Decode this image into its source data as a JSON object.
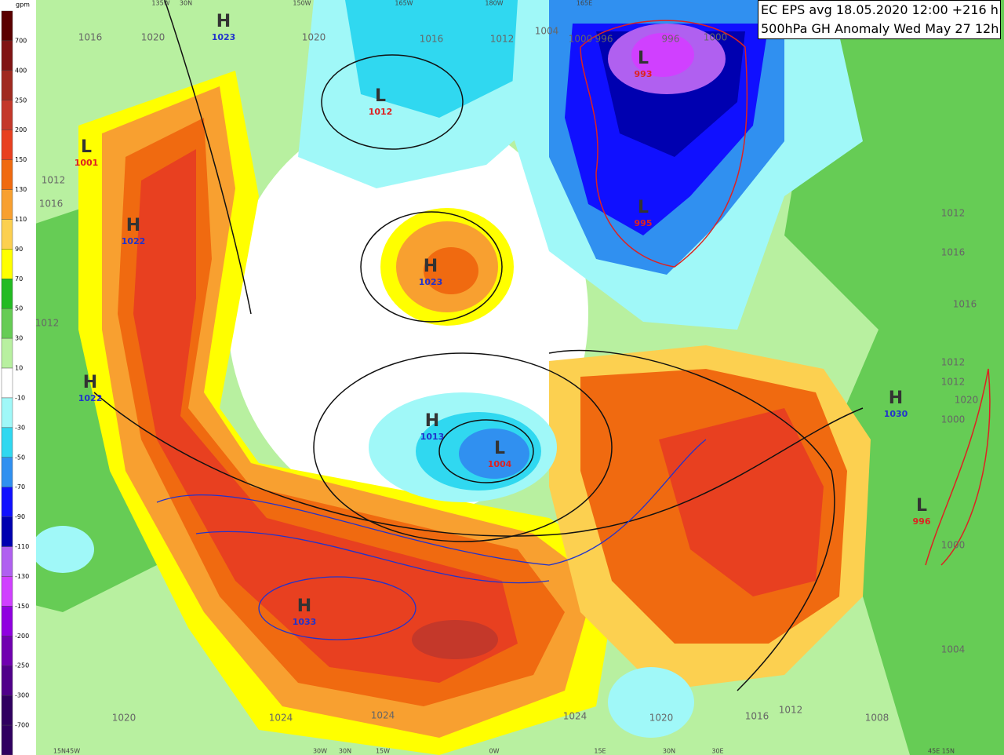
{
  "title": [
    "EC EPS avg 18.05.2020 12:00 +216 h",
    "500hPa GH Anomaly Wed May 27 12h"
  ],
  "legend": {
    "unit": "gpm",
    "items": [
      {
        "value": 700,
        "color": "#5a0000"
      },
      {
        "value": 400,
        "color": "#801414"
      },
      {
        "value": 250,
        "color": "#a02a20"
      },
      {
        "value": 200,
        "color": "#c4382a"
      },
      {
        "value": 150,
        "color": "#e84020"
      },
      {
        "value": 130,
        "color": "#f06a10"
      },
      {
        "value": 110,
        "color": "#f8a030"
      },
      {
        "value": 90,
        "color": "#fcd050"
      },
      {
        "value": 70,
        "color": "#ffff00"
      },
      {
        "value": 50,
        "color": "#22bb22"
      },
      {
        "value": 30,
        "color": "#66cc55"
      },
      {
        "value": 10,
        "color": "#b8f0a0"
      },
      {
        "value": -10,
        "color": "#ffffff"
      },
      {
        "value": -30,
        "color": "#a0f8f8"
      },
      {
        "value": -50,
        "color": "#30d8f0"
      },
      {
        "value": -70,
        "color": "#3090f0"
      },
      {
        "value": -90,
        "color": "#1010ff"
      },
      {
        "value": -110,
        "color": "#0000b0"
      },
      {
        "value": -130,
        "color": "#b060f0"
      },
      {
        "value": -150,
        "color": "#d040ff"
      },
      {
        "value": -200,
        "color": "#9000e0"
      },
      {
        "value": -250,
        "color": "#7000b0"
      },
      {
        "value": -300,
        "color": "#50008a"
      },
      {
        "value": -700,
        "color": "#300060"
      }
    ]
  },
  "centers": [
    {
      "letter": "H",
      "value": 1023
    },
    {
      "letter": "L",
      "value": 1012
    },
    {
      "letter": "L",
      "value": 1001
    },
    {
      "letter": "H",
      "value": 1022
    },
    {
      "letter": "H",
      "value": 1023
    },
    {
      "letter": "H",
      "value": 1022
    },
    {
      "letter": "H",
      "value": 1013
    },
    {
      "letter": "L",
      "value": 1004
    },
    {
      "letter": "H",
      "value": 1033
    },
    {
      "letter": "L",
      "value": 993
    },
    {
      "letter": "L",
      "value": 995
    },
    {
      "letter": "H",
      "value": 1030
    },
    {
      "letter": "L",
      "value": 996
    }
  ],
  "isobar_labels": [
    1016,
    1020,
    1020,
    1016,
    1012,
    1004,
    1000,
    996,
    996,
    1000,
    1012,
    1016,
    1012,
    1020,
    1024,
    1024,
    1024,
    1020,
    1016,
    1012,
    1008,
    1004,
    1000,
    1000,
    1020,
    1012,
    1012,
    1016,
    1016,
    1012
  ],
  "graticule_labels": [
    "135W",
    "30N",
    "150W",
    "165W",
    "180W",
    "165E",
    "15N45W",
    "30W",
    "30N",
    "15W",
    "0W",
    "15E",
    "30N",
    "30E",
    "45E 15N"
  ]
}
